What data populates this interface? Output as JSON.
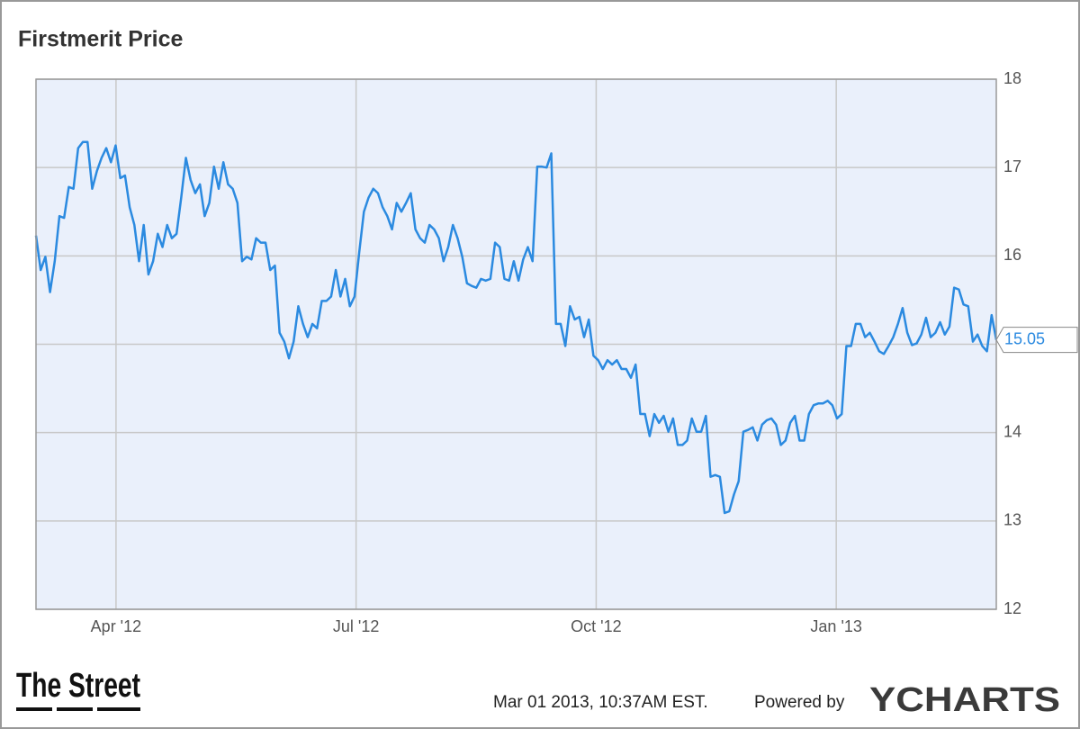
{
  "chart_data": {
    "type": "line",
    "title": "Firstmerit Price",
    "xlim": [
      "2012-03",
      "2013-03"
    ],
    "xticks": [
      {
        "value": "2012-04",
        "label": "Apr '12"
      },
      {
        "value": "2012-07",
        "label": "Jul '12"
      },
      {
        "value": "2012-10",
        "label": "Oct '12"
      },
      {
        "value": "2013-01",
        "label": "Jan '13"
      }
    ],
    "ylim": [
      12,
      18
    ],
    "yticks": [
      12,
      13,
      14,
      15,
      16,
      17,
      18
    ],
    "grid": true,
    "y_axis_side": "right",
    "series": [
      {
        "color": "#2b8ae0",
        "values": [
          16.23,
          15.84,
          15.99,
          15.59,
          15.94,
          16.45,
          16.43,
          16.78,
          16.76,
          17.22,
          17.29,
          17.29,
          16.76,
          16.96,
          17.11,
          17.22,
          17.06,
          17.25,
          16.88,
          16.91,
          16.55,
          16.35,
          15.94,
          16.35,
          15.79,
          15.94,
          16.25,
          16.1,
          16.35,
          16.2,
          16.25,
          16.66,
          17.11,
          16.86,
          16.71,
          16.81,
          16.45,
          16.6,
          17.01,
          16.76,
          17.06,
          16.81,
          16.76,
          16.6,
          15.94,
          15.99,
          15.96,
          16.2,
          16.15,
          16.15,
          15.84,
          15.89,
          15.13,
          15.03,
          14.84,
          15.03,
          15.43,
          15.23,
          15.08,
          15.23,
          15.18,
          15.49,
          15.49,
          15.54,
          15.84,
          15.54,
          15.74,
          15.43,
          15.54,
          16.04,
          16.5,
          16.66,
          16.76,
          16.71,
          16.55,
          16.45,
          16.3,
          16.6,
          16.5,
          16.6,
          16.71,
          16.3,
          16.2,
          16.15,
          16.35,
          16.3,
          16.2,
          15.94,
          16.1,
          16.35,
          16.2,
          15.99,
          15.69,
          15.66,
          15.64,
          15.74,
          15.72,
          15.74,
          16.15,
          16.1,
          15.74,
          15.72,
          15.94,
          15.72,
          15.96,
          16.1,
          15.94,
          17.01,
          17.01,
          17.0,
          17.16,
          15.23,
          15.23,
          14.98,
          15.43,
          15.28,
          15.31,
          15.08,
          15.28,
          14.87,
          14.82,
          14.72,
          14.82,
          14.77,
          14.82,
          14.72,
          14.72,
          14.62,
          14.77,
          14.21,
          14.21,
          13.96,
          14.21,
          14.11,
          14.19,
          14.01,
          14.16,
          13.86,
          13.86,
          13.91,
          14.16,
          14.01,
          14.01,
          14.19,
          13.5,
          13.52,
          13.5,
          13.09,
          13.11,
          13.3,
          13.45,
          14.01,
          14.03,
          14.06,
          13.91,
          14.09,
          14.14,
          14.16,
          14.09,
          13.86,
          13.91,
          14.11,
          14.19,
          13.91,
          13.91,
          14.21,
          14.31,
          14.33,
          14.33,
          14.36,
          14.31,
          14.16,
          14.21,
          14.98,
          14.98,
          15.23,
          15.23,
          15.08,
          15.13,
          15.03,
          14.92,
          14.89,
          14.98,
          15.08,
          15.23,
          15.41,
          15.13,
          14.99,
          15.01,
          15.11,
          15.3,
          15.08,
          15.13,
          15.25,
          15.11,
          15.2,
          15.64,
          15.62,
          15.45,
          15.43,
          15.03,
          15.11,
          14.98,
          14.92,
          15.33,
          15.05
        ]
      }
    ]
  },
  "footer": {
    "brand": "The Street",
    "timestamp": "Mar 01 2013, 10:37AM EST.",
    "powered_by": "Powered by",
    "logo": "YCHARTS"
  }
}
